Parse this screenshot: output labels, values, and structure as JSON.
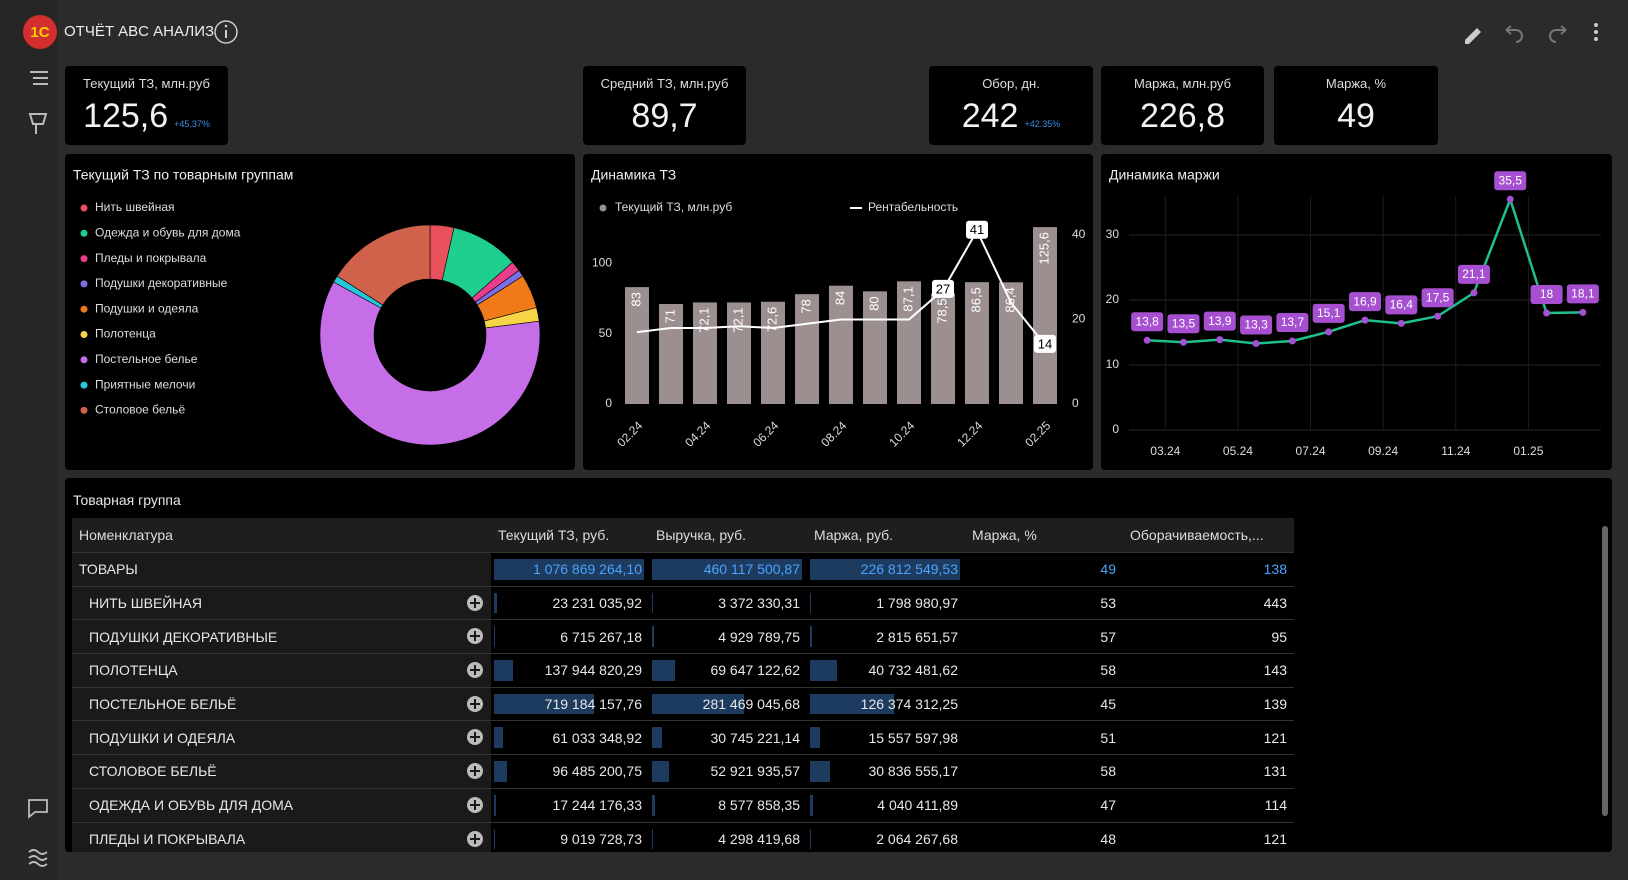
{
  "header": {
    "logo": "1С",
    "title": "ОТЧЁТ ABC АНАЛИЗ"
  },
  "kpis": [
    {
      "label": "Текущий ТЗ, млн.руб",
      "value": "125,6",
      "delta": "+45.37%"
    },
    {
      "label": "Средний ТЗ, млн.руб",
      "value": "89,7"
    },
    {
      "label": "Обор, дн.",
      "value": "242",
      "delta": "+42.35%"
    },
    {
      "label": "Маржа, млн.руб",
      "value": "226,8"
    },
    {
      "label": "Маржа, %",
      "value": "49"
    }
  ],
  "chart_data": [
    {
      "type": "pie",
      "donut": true,
      "title": "Текущий ТЗ по товарным группам",
      "categories": [
        "Нить швейная",
        "Одежда и обувь для дома",
        "Пледы и покрывала",
        "Подушки декоративные",
        "Подушки и одеяла",
        "Полотенца",
        "Постельное белье",
        "Приятные мелочи",
        "Столовое бельё"
      ],
      "values": [
        3.5,
        10,
        1.5,
        1,
        5,
        2,
        60,
        1,
        16
      ],
      "colors": [
        "#e8505b",
        "#1fcf8f",
        "#e83e8c",
        "#7b6fe6",
        "#f07a1a",
        "#f5d547",
        "#c66ee8",
        "#25c7d9",
        "#d0614a"
      ]
    },
    {
      "type": "combo",
      "title": "Динамика ТЗ",
      "categories": [
        "02.24",
        null,
        "04.24",
        null,
        "06.24",
        null,
        "08.24",
        null,
        "10.24",
        null,
        "12.24",
        null,
        "02.25"
      ],
      "ylim": [
        0,
        120
      ],
      "yticks": [
        0,
        50,
        100
      ],
      "y2lim": [
        0,
        40
      ],
      "y2ticks": [
        0,
        20,
        40
      ],
      "series": [
        {
          "name": "Текущий ТЗ, млн.руб",
          "type": "bar",
          "color": "#9c8f8f",
          "values": [
            83,
            71,
            72.1,
            72.1,
            72.6,
            78,
            84,
            80,
            87.1,
            78.5,
            86.5,
            86.4,
            125.6
          ],
          "value_labels": [
            "83",
            "71",
            "72,1",
            "72,1",
            "72,6",
            "78",
            "84",
            "80",
            "87,1",
            "78,5",
            "86,5",
            "86,4",
            "125,6"
          ]
        },
        {
          "name": "Рентабельность",
          "type": "line",
          "axis": "y2",
          "color": "#ffffff",
          "values": [
            17,
            18,
            18,
            18.4,
            18,
            19,
            20,
            20,
            20,
            27,
            41,
            24,
            14
          ],
          "value_labels": [
            null,
            null,
            null,
            null,
            null,
            null,
            null,
            null,
            null,
            "27",
            "41",
            null,
            "14"
          ]
        }
      ]
    },
    {
      "type": "line",
      "title": "Динамика маржи",
      "categories": [
        null,
        "03.24",
        null,
        "05.24",
        null,
        "07.24",
        null,
        "09.24",
        null,
        "11.24",
        null,
        "01.25",
        null
      ],
      "ylim": [
        0,
        36
      ],
      "yticks": [
        0,
        10,
        20,
        30
      ],
      "grid": true,
      "color": "#1fbf8f",
      "marker_color": "#a64fd1",
      "values": [
        13.8,
        13.5,
        13.9,
        13.3,
        13.7,
        15.1,
        16.9,
        16.4,
        17.5,
        21.1,
        35.5,
        18,
        18.1
      ],
      "value_labels": [
        "13,8",
        "13,5",
        "13,9",
        "13,3",
        "13,7",
        "15,1",
        "16,9",
        "16,4",
        "17,5",
        "21,1",
        "35,5",
        "18",
        "18,1"
      ]
    }
  ],
  "table": {
    "title": "Товарная группа",
    "bar_columns": [
      1,
      2,
      3
    ],
    "columns": [
      "Номенклатура",
      "Текущий ТЗ, руб.",
      "Выручка, руб.",
      "Маржа, руб.",
      "Маржа, %",
      "Оборачиваемость,..."
    ],
    "rows": [
      [
        "ТОВАРЫ",
        "1 076 869 264,10",
        "460 117 500,87",
        "226 812 549,53",
        "49",
        "138"
      ],
      [
        "НИТЬ ШВЕЙНАЯ",
        "23 231 035,92",
        "3 372 330,31",
        "1 798 980,97",
        "53",
        "443"
      ],
      [
        "ПОДУШКИ ДЕКОРАТИВНЫЕ",
        "6 715 267,18",
        "4 929 789,75",
        "2 815 651,57",
        "57",
        "95"
      ],
      [
        "ПОЛОТЕНЦА",
        "137 944 820,29",
        "69 647 122,62",
        "40 732 481,62",
        "58",
        "143"
      ],
      [
        "ПОСТЕЛЬНОЕ БЕЛЬЁ",
        "719 184 157,76",
        "281 469 045,68",
        "126 374 312,25",
        "45",
        "139"
      ],
      [
        "ПОДУШКИ И ОДЕЯЛА",
        "61 033 348,92",
        "30 745 221,14",
        "15 557 597,98",
        "51",
        "121"
      ],
      [
        "СТОЛОВОЕ БЕЛЬЁ",
        "96 485 200,75",
        "52 921 935,57",
        "30 836 555,17",
        "58",
        "131"
      ],
      [
        "ОДЕЖДА И ОБУВЬ ДЛЯ ДОМА",
        "17 244 176,33",
        "8 577 858,35",
        "4 040 411,89",
        "47",
        "114"
      ],
      [
        "ПЛЕДЫ И ПОКРЫВАЛА",
        "9 019 728,73",
        "4 298 419,68",
        "2 064 267,68",
        "48",
        "121"
      ]
    ]
  }
}
